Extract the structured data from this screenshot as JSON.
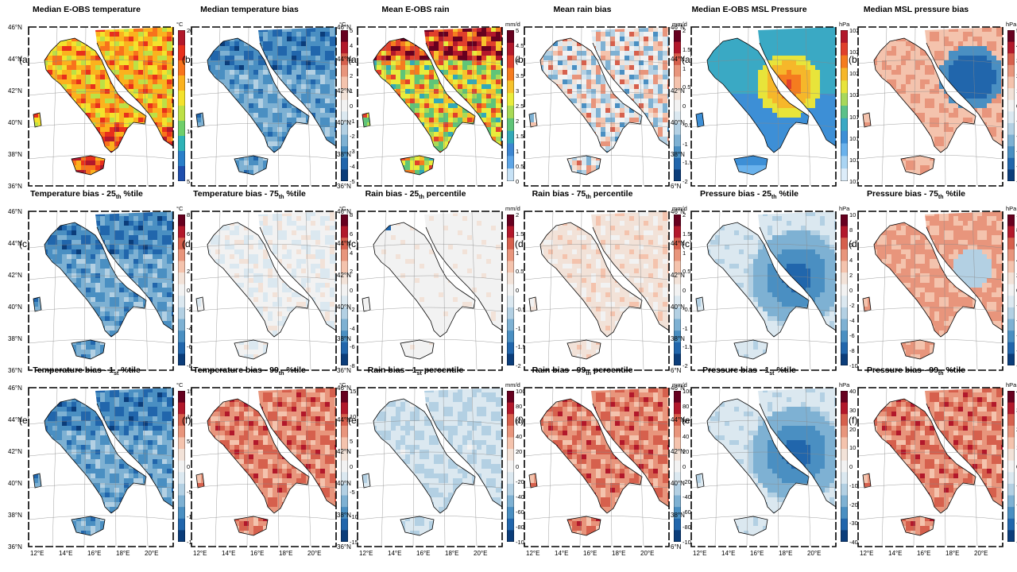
{
  "lat_labels": [
    "46°N",
    "44°N",
    "42°N",
    "40°N",
    "38°N",
    "36°N"
  ],
  "lat_labels_short": [
    "46°N",
    "44°N",
    "42°N",
    "40°N",
    "38°N",
    "6°N"
  ],
  "lon_labels": [
    "12°E",
    "14°E",
    "16°E",
    "18°E",
    "20°E"
  ],
  "panels": [
    {
      "id": "t-a",
      "title": "Median E-OBS temperature",
      "label": "(a)",
      "unit": "°C",
      "ticks": [
        "20",
        "15",
        "10",
        "5"
      ],
      "palette": "temp_abs",
      "lat_style": "full"
    },
    {
      "id": "t-b",
      "title": "Median temperature bias",
      "label": "(b)",
      "unit": "°C",
      "ticks": [
        "5",
        "4",
        "3",
        "2",
        "1",
        "0",
        "-1",
        "-2",
        "-3",
        "-4",
        "-5"
      ],
      "palette": "div",
      "field": "cold"
    },
    {
      "id": "r-a",
      "title": "Mean E-OBS rain",
      "label": "(a)",
      "unit": "mm/d",
      "ticks": [
        "5",
        "4.5",
        "4",
        "3.5",
        "3",
        "2.5",
        "2",
        "1.5",
        "1",
        "0.5",
        "0"
      ],
      "palette": "rain_abs",
      "lat_style": "full"
    },
    {
      "id": "r-b",
      "title": "Mean rain bias",
      "label": "(b)",
      "unit": "mm/d",
      "ticks": [
        "2",
        "1.5",
        "1",
        "0.5",
        "0",
        "-0.5",
        "-1",
        "-1.5",
        "-2"
      ],
      "palette": "div",
      "field": "mixed_wet"
    },
    {
      "id": "p-a",
      "title": "Median E-OBS MSL Pressure",
      "label": "(a)",
      "unit": "hPa",
      "ticks": [
        "1026",
        "1024",
        "1022",
        "1020",
        "1018",
        "1016",
        "1014",
        "1012"
      ],
      "palette": "pres_abs",
      "lat_style": "short"
    },
    {
      "id": "p-b",
      "title": "Median MSL pressure bias",
      "label": "(b)",
      "unit": "hPa",
      "ticks": [
        "5",
        "4",
        "3",
        "2",
        "1",
        "0",
        "-1",
        "-2",
        "-3",
        "-4",
        "-5"
      ],
      "palette": "div",
      "field": "pres_bias"
    },
    {
      "id": "t-c",
      "title": "Temperature bias - 25th %tile",
      "title_parts": [
        "Temperature bias - 25",
        "th",
        " %tile"
      ],
      "label": "(c)",
      "unit": "°C",
      "ticks": [
        "8",
        "6",
        "4",
        "2",
        "0",
        "-2",
        "-4",
        "-6",
        "-8"
      ],
      "palette": "div",
      "field": "cold",
      "lat_style": "full"
    },
    {
      "id": "t-d",
      "title": "Temperature bias - 75th %tile",
      "title_parts": [
        "Temperature bias - 75",
        "th",
        " %tile"
      ],
      "label": "(d)",
      "unit": "°C",
      "ticks": [
        "8",
        "6",
        "4",
        "2",
        "0",
        "-2",
        "-4",
        "-6",
        "-8"
      ],
      "palette": "div",
      "field": "light_mixed"
    },
    {
      "id": "r-c",
      "title": "Rain bias - 25th percentile",
      "title_parts": [
        "Rain bias - 25",
        "th",
        " percentile"
      ],
      "label": "(c)",
      "unit": "mm/d",
      "ticks": [
        "2",
        "1.5",
        "1",
        "0.5",
        "0",
        "-0.5",
        "-1",
        "-1.5",
        "-2"
      ],
      "palette": "div",
      "field": "neutral",
      "lat_style": "full"
    },
    {
      "id": "r-d",
      "title": "Rain bias - 75th percentile",
      "title_parts": [
        "Rain bias - 75",
        "th",
        " percentile"
      ],
      "label": "(d)",
      "unit": "mm/d",
      "ticks": [
        "2",
        "1.5",
        "1",
        "0.5",
        "0",
        "-0.5",
        "-1",
        "-1.5",
        "-2"
      ],
      "palette": "div",
      "field": "light_warm"
    },
    {
      "id": "p-c",
      "title": "Pressure bias - 25th %tile",
      "title_parts": [
        "Pressure bias - 25",
        "th",
        " %tile"
      ],
      "label": "(c)",
      "unit": "hPa",
      "ticks": [
        "10",
        "8",
        "6",
        "4",
        "2",
        "0",
        "-2",
        "-4",
        "-6",
        "-8",
        "-10"
      ],
      "palette": "div",
      "field": "pres_cold",
      "lat_style": "short"
    },
    {
      "id": "p-d",
      "title": "Pressure bias - 75th %tile",
      "title_parts": [
        "Pressure bias - 75",
        "th",
        " %tile"
      ],
      "label": "(d)",
      "unit": "hPa",
      "ticks": [
        "10",
        "8",
        "6",
        "4",
        "2",
        "0",
        "-2",
        "-4",
        "-6",
        "-8",
        "-10"
      ],
      "palette": "div",
      "field": "pres_warm"
    },
    {
      "id": "t-e",
      "title": "Temperature bias - 1st %tile",
      "title_parts": [
        "Temperature bias - 1",
        "st",
        " %tile"
      ],
      "label": "(e)",
      "unit": "°C",
      "ticks": [
        "15",
        "10",
        "5",
        "0",
        "-5",
        "-10",
        "-15"
      ],
      "palette": "div",
      "field": "cold",
      "lat_style": "full"
    },
    {
      "id": "t-f",
      "title": "Temperature bias - 99th %tile",
      "title_parts": [
        "Temperature bias - 99",
        "th",
        " %tile"
      ],
      "label": "(f)",
      "unit": "°C",
      "ticks": [
        "15",
        "10",
        "5",
        "0",
        "-5",
        "-10",
        "-15"
      ],
      "palette": "div",
      "field": "warm"
    },
    {
      "id": "r-e",
      "title": "Rain bias - 1st percentile",
      "title_parts": [
        "Rain bias - 1",
        "st",
        " percentile"
      ],
      "label": "(e)",
      "unit": "mm/d",
      "ticks": [
        "100",
        "80",
        "60",
        "40",
        "20",
        "0",
        "-20",
        "-40",
        "-60",
        "-80",
        "-100"
      ],
      "palette": "div",
      "field": "light_cold",
      "lat_style": "full"
    },
    {
      "id": "r-f",
      "title": "Rain bias - 99th percentile",
      "title_parts": [
        "Rain bias - 99",
        "th",
        " percentile"
      ],
      "label": "(f)",
      "unit": "mm/d",
      "ticks": [
        "100",
        "80",
        "60",
        "40",
        "20",
        "0",
        "-20",
        "-40",
        "-60",
        "-80",
        "-100"
      ],
      "palette": "div",
      "field": "warm"
    },
    {
      "id": "p-e",
      "title": "Pressure bias - 1st %tile",
      "title_parts": [
        "Pressure bias - 1",
        "st",
        " %tile"
      ],
      "label": "(e)",
      "unit": "hPa",
      "ticks": [
        "40",
        "30",
        "20",
        "10",
        "0",
        "-10",
        "-20",
        "-30",
        "-40"
      ],
      "palette": "div",
      "field": "pres_cold",
      "lat_style": "short"
    },
    {
      "id": "p-f",
      "title": "Pressure bias - 99th %tile",
      "title_parts": [
        "Pressure bias - 99",
        "th",
        " %tile"
      ],
      "label": "(f)",
      "unit": "hPa",
      "ticks": [
        "40",
        "30",
        "20",
        "10",
        "0",
        "-10",
        "-20",
        "-30",
        "-40"
      ],
      "palette": "div",
      "field": "warm"
    }
  ],
  "palettes": {
    "temp_abs": [
      "#b2182b",
      "#e8301c",
      "#f8731c",
      "#fbb21e",
      "#f4e22c",
      "#bde046",
      "#6fcf6b",
      "#2fb3b7",
      "#2a7fc9",
      "#1f4fae"
    ],
    "rain_abs": [
      "#67001f",
      "#b2182b",
      "#e0402c",
      "#f57c1f",
      "#f6c32c",
      "#e9ec3c",
      "#a8da56",
      "#5fc478",
      "#33a9b8",
      "#3d86d1",
      "#5fa6e6",
      "#c7e2f6"
    ],
    "pres_abs": [
      "#b2182b",
      "#e0402c",
      "#f57c1f",
      "#f6b72a",
      "#e8e43a",
      "#a8d85a",
      "#5cc189",
      "#3aa9c4",
      "#3d8fd6",
      "#6ab2ec",
      "#a9d4f3",
      "#dcecf9"
    ],
    "div": [
      "#67001f",
      "#b2182b",
      "#d6604d",
      "#e8957c",
      "#f4c3ad",
      "#f2e2d8",
      "#f2f2f2",
      "#dbe8f0",
      "#b3d0e3",
      "#7eb1d3",
      "#4a8fc2",
      "#2166ac",
      "#0b3d7a"
    ]
  }
}
